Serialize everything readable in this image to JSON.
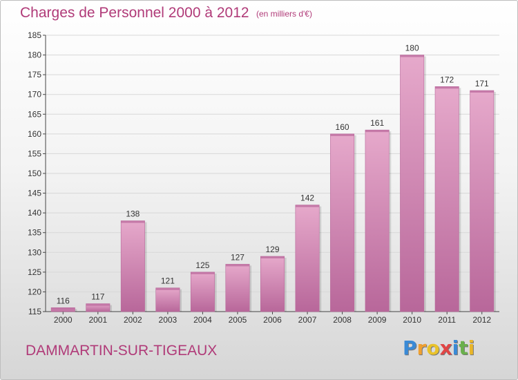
{
  "title": "Charges de Personnel 2000 à 2012",
  "subtitle": "(en milliers d'€)",
  "location": "DAMMARTIN-SUR-TIGEAUX",
  "brand": {
    "letters": [
      "P",
      "r",
      "o",
      "x",
      "i",
      "t",
      "i"
    ],
    "colors": [
      "#3a8ad6",
      "#f0a030",
      "#e9c22a",
      "#e04545",
      "#3a8ad6",
      "#6ab04c",
      "#e9b62a"
    ]
  },
  "colors": {
    "bar": "#cf85b0",
    "bar_light": "#e6a9cb",
    "bar_dark": "#b8679a",
    "text": "#b03a78",
    "axis": "#444444"
  },
  "chart_data": {
    "type": "bar",
    "categories": [
      "2000",
      "2001",
      "2002",
      "2003",
      "2004",
      "2005",
      "2006",
      "2007",
      "2008",
      "2009",
      "2010",
      "2011",
      "2012"
    ],
    "values": [
      116,
      117,
      138,
      121,
      125,
      127,
      129,
      142,
      160,
      161,
      180,
      172,
      171
    ],
    "ylim": [
      115,
      185
    ],
    "yticks": [
      115,
      120,
      125,
      130,
      135,
      140,
      145,
      150,
      155,
      160,
      165,
      170,
      175,
      180,
      185
    ],
    "grid": true
  }
}
